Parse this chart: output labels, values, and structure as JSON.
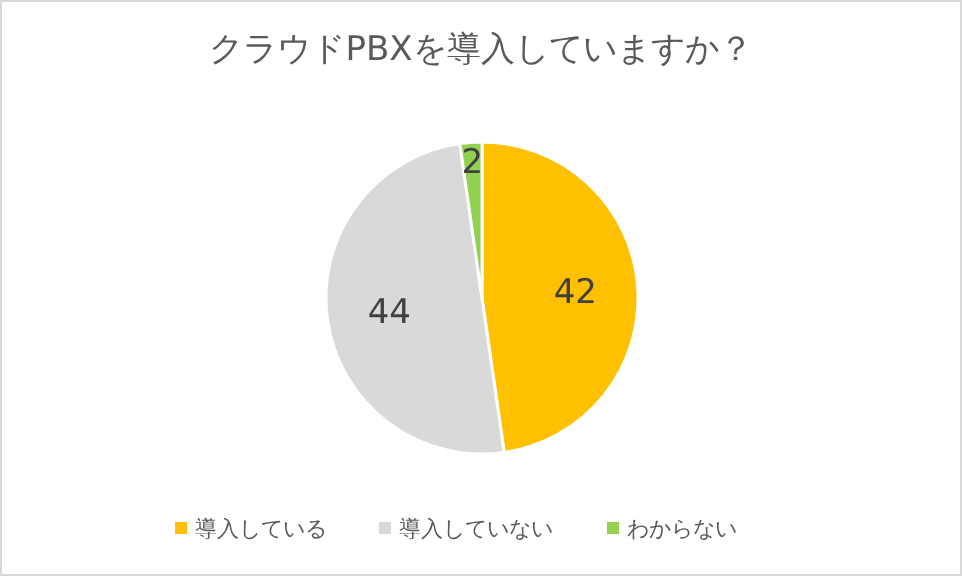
{
  "chart_data": {
    "type": "pie",
    "title": "クラウドPBXを導入していますか？",
    "categories": [
      "導入している",
      "導入していない",
      "わからない"
    ],
    "values": [
      42,
      44,
      2
    ],
    "colors": [
      "#ffc000",
      "#d9d9d9",
      "#92d050"
    ],
    "data_labels": true,
    "legend": "bottom"
  }
}
